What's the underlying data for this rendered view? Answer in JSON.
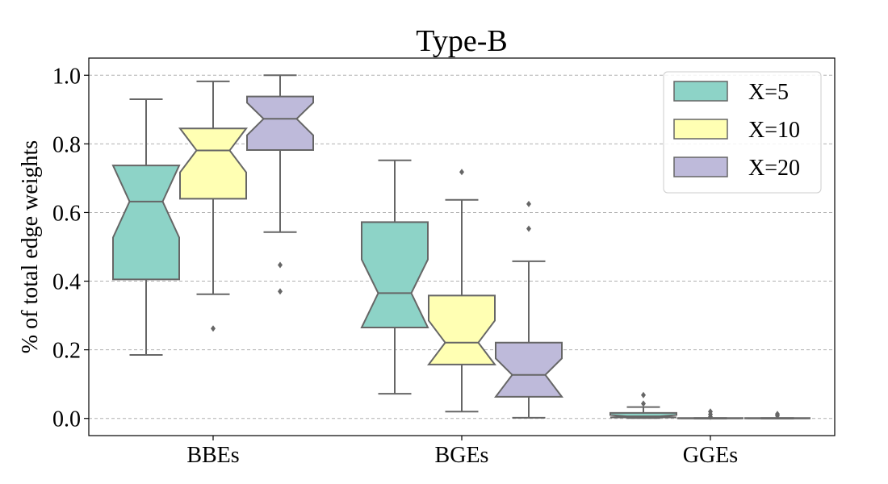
{
  "chart_data": {
    "type": "boxplot",
    "title": "Type-B",
    "xlabel": "",
    "ylabel": "% of total edge weights",
    "ylim": [
      -0.05,
      1.05
    ],
    "yticks": [
      0.0,
      0.2,
      0.4,
      0.6,
      0.8,
      1.0
    ],
    "ytick_labels": [
      "0.0",
      "0.2",
      "0.4",
      "0.6",
      "0.8",
      "1.0"
    ],
    "grid": "horizontal dashed",
    "legend_position": "top-right",
    "categories": [
      "BBEs",
      "BGEs",
      "GGEs"
    ],
    "series": [
      {
        "name": "X=5",
        "color": "#8dd3c7",
        "boxes": [
          {
            "whislo": 0.185,
            "q1": 0.405,
            "med": 0.632,
            "q3": 0.737,
            "whishi": 0.93,
            "notch_lo": 0.527,
            "notch_hi": 0.737,
            "fliers": []
          },
          {
            "whislo": 0.072,
            "q1": 0.265,
            "med": 0.365,
            "q3": 0.572,
            "whishi": 0.752,
            "notch_lo": 0.265,
            "notch_hi": 0.463,
            "fliers": []
          },
          {
            "whislo": 0.001,
            "q1": 0.003,
            "med": 0.006,
            "q3": 0.016,
            "whishi": 0.033,
            "notch_lo": 0.003,
            "notch_hi": 0.01,
            "fliers": [
              0.043,
              0.068
            ]
          }
        ]
      },
      {
        "name": "X=10",
        "color": "#ffffb3",
        "boxes": [
          {
            "whislo": 0.362,
            "q1": 0.64,
            "med": 0.781,
            "q3": 0.845,
            "whishi": 0.982,
            "notch_lo": 0.717,
            "notch_hi": 0.845,
            "fliers": [
              0.262
            ]
          },
          {
            "whislo": 0.02,
            "q1": 0.157,
            "med": 0.221,
            "q3": 0.358,
            "whishi": 0.637,
            "notch_lo": 0.157,
            "notch_hi": 0.285,
            "fliers": [
              0.718
            ]
          },
          {
            "whislo": 0.0,
            "q1": 0.0,
            "med": 0.0,
            "q3": 0.001,
            "whishi": 0.001,
            "notch_lo": 0.0,
            "notch_hi": 0.001,
            "fliers": [
              0.005,
              0.012,
              0.02
            ]
          }
        ]
      },
      {
        "name": "X=20",
        "color": "#bebada",
        "boxes": [
          {
            "whislo": 0.543,
            "q1": 0.782,
            "med": 0.873,
            "q3": 0.938,
            "whishi": 1.0,
            "notch_lo": 0.825,
            "notch_hi": 0.92,
            "fliers": [
              0.447,
              0.37
            ]
          },
          {
            "whislo": 0.002,
            "q1": 0.063,
            "med": 0.127,
            "q3": 0.221,
            "whishi": 0.458,
            "notch_lo": 0.063,
            "notch_hi": 0.175,
            "fliers": [
              0.553,
              0.625
            ]
          },
          {
            "whislo": 0.0,
            "q1": 0.0,
            "med": 0.0,
            "q3": 0.001,
            "whishi": 0.001,
            "notch_lo": 0.0,
            "notch_hi": 0.001,
            "fliers": [
              0.008,
              0.013
            ]
          }
        ]
      }
    ]
  }
}
